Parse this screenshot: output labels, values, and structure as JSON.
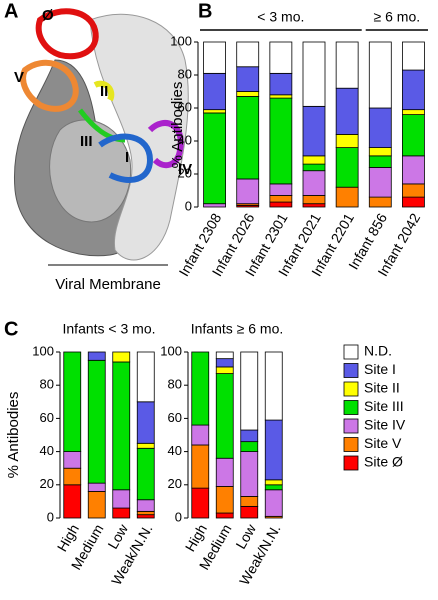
{
  "panel_labels": [
    "A",
    "B",
    "C"
  ],
  "structure": {
    "site_labels": [
      "Ø",
      "V",
      "II",
      "III",
      "I",
      "IV"
    ],
    "membrane_label": "Viral Membrane"
  },
  "chart_data": [
    {
      "type": "stacked_bar",
      "ylabel": "% Antibodies",
      "categories": [
        "Infant 2308",
        "Infant 2026",
        "Infant 2301",
        "Infant 2021",
        "Infant 2201",
        "Infant 856",
        "Infant 2042"
      ],
      "annotations": [
        "< 3 mo.",
        "≥ 6 mo."
      ],
      "ylim": [
        0,
        100
      ],
      "yticks": [
        0,
        20,
        40,
        60,
        80,
        100
      ],
      "series": [
        {
          "color": "#ff0000",
          "values": [
            0,
            1,
            3,
            2,
            0,
            0,
            6
          ]
        },
        {
          "color": "#ff8000",
          "values": [
            0,
            1,
            4,
            5,
            12,
            6,
            8
          ]
        },
        {
          "color": "#cc77e6",
          "values": [
            2,
            15,
            7,
            15,
            0,
            18,
            17
          ]
        },
        {
          "color": "#00e000",
          "values": [
            55,
            50,
            52,
            4,
            24,
            7,
            25
          ]
        },
        {
          "color": "#ffff00",
          "values": [
            2,
            3,
            2,
            5,
            8,
            5,
            3
          ]
        },
        {
          "color": "#5a5ae6",
          "values": [
            22,
            15,
            13,
            30,
            28,
            24,
            24
          ]
        },
        {
          "color": "#ffffff",
          "values": [
            19,
            15,
            19,
            39,
            28,
            40,
            17
          ]
        }
      ]
    },
    {
      "type": "stacked_bar",
      "title": "Infants < 3 mo.",
      "ylabel": "% Antibodies",
      "categories": [
        "High",
        "Medium",
        "Low",
        "Weak/N.N."
      ],
      "ylim": [
        0,
        100
      ],
      "yticks": [
        0,
        20,
        40,
        60,
        80,
        100
      ],
      "series": [
        {
          "color": "#ff0000",
          "values": [
            20,
            0,
            6,
            2
          ]
        },
        {
          "color": "#ff8000",
          "values": [
            10,
            16,
            0,
            2
          ]
        },
        {
          "color": "#cc77e6",
          "values": [
            10,
            5,
            11,
            7
          ]
        },
        {
          "color": "#00e000",
          "values": [
            60,
            74,
            77,
            31
          ]
        },
        {
          "color": "#ffff00",
          "values": [
            0,
            0,
            6,
            3
          ]
        },
        {
          "color": "#5a5ae6",
          "values": [
            0,
            5,
            0,
            25
          ]
        },
        {
          "color": "#ffffff",
          "values": [
            0,
            0,
            0,
            30
          ]
        }
      ]
    },
    {
      "type": "stacked_bar",
      "title": "Infants ≥ 6 mo.",
      "categories": [
        "High",
        "Medium",
        "Low",
        "Weak/N.N."
      ],
      "ylim": [
        0,
        100
      ],
      "yticks": [
        0,
        20,
        40,
        60,
        80,
        100
      ],
      "legend": "right",
      "series": [
        {
          "name": "Site Ø",
          "color": "#ff0000",
          "values": [
            18,
            3,
            7,
            0
          ]
        },
        {
          "name": "Site V",
          "color": "#ff8000",
          "values": [
            26,
            16,
            6,
            1
          ]
        },
        {
          "name": "Site IV",
          "color": "#cc77e6",
          "values": [
            12,
            17,
            27,
            16
          ]
        },
        {
          "name": "Site III",
          "color": "#00e000",
          "values": [
            44,
            51,
            6,
            3
          ]
        },
        {
          "name": "Site II",
          "color": "#ffff00",
          "values": [
            0,
            4,
            0,
            3
          ]
        },
        {
          "name": "Site I",
          "color": "#5a5ae6",
          "values": [
            0,
            5,
            7,
            36
          ]
        },
        {
          "name": "N.D.",
          "color": "#ffffff",
          "values": [
            0,
            4,
            47,
            41
          ]
        }
      ]
    }
  ]
}
